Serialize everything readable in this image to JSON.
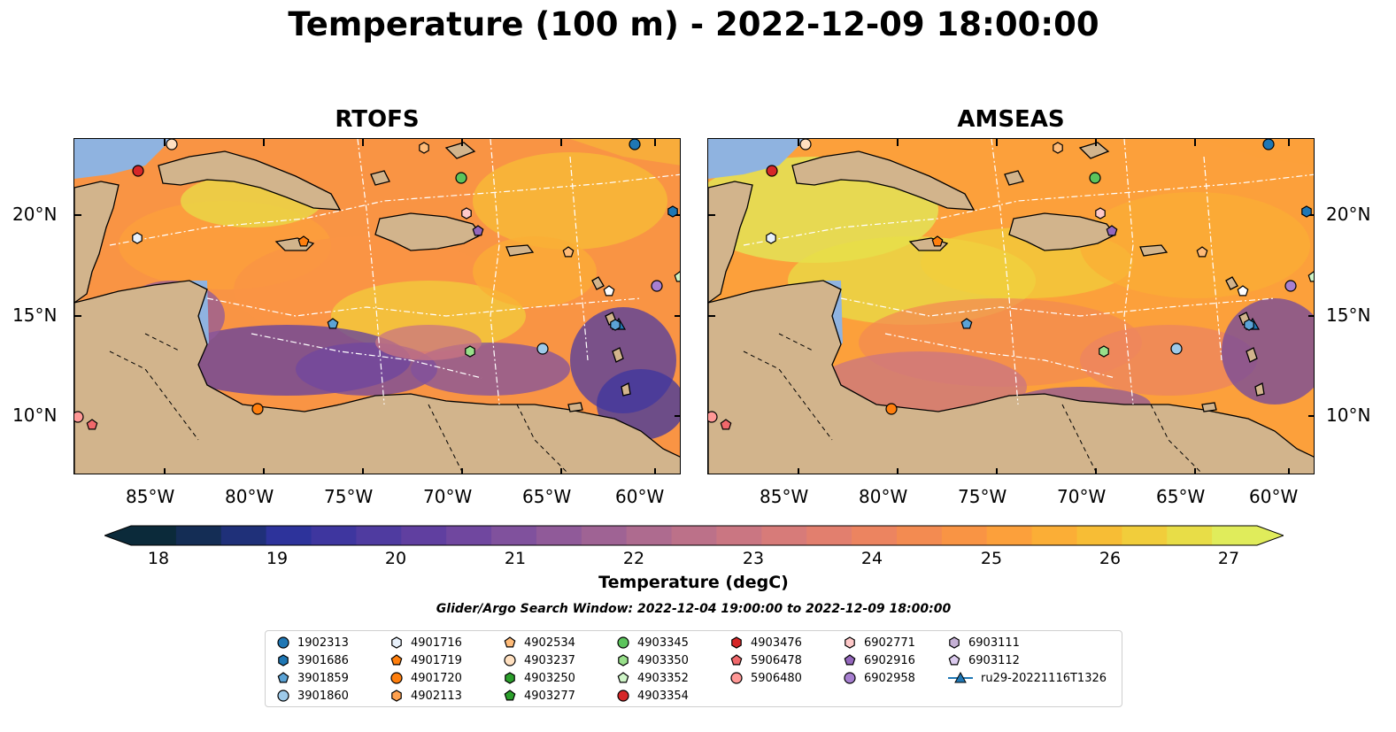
{
  "title": "Temperature (100 m) - 2022-12-09 18:00:00",
  "panels": [
    {
      "title": "RTOFS",
      "style": "rtofs"
    },
    {
      "title": "AMSEAS",
      "style": "amseas"
    }
  ],
  "map": {
    "lon_labels": [
      "85°W",
      "80°W",
      "75°W",
      "70°W",
      "65°W",
      "60°W"
    ],
    "lat_labels": [
      "20°N",
      "15°N",
      "10°N"
    ],
    "colors": {
      "land": "#d2b48c",
      "ocean": "#8fb3e0",
      "deep_ocean": "#06202f",
      "coast": "#000000",
      "eez_line": "#ffffff",
      "border_line": "#000000"
    }
  },
  "colorbar": {
    "label": "Temperature (degC)",
    "ticks": [
      "18",
      "19",
      "20",
      "21",
      "22",
      "23",
      "24",
      "25",
      "26",
      "27"
    ],
    "colors": [
      "#0b2a3a",
      "#142d55",
      "#1f3079",
      "#2d339b",
      "#3e369f",
      "#4f3ba0",
      "#603fa0",
      "#70479f",
      "#80519d",
      "#905a99",
      "#9f6394",
      "#ae6b8f",
      "#bc7189",
      "#ca7682",
      "#d77b79",
      "#e27f6e",
      "#ec8460",
      "#f38b51",
      "#f99444",
      "#fca03b",
      "#fbae36",
      "#f7bd35",
      "#f1cd3b",
      "#e8dd47",
      "#e0ec5b"
    ]
  },
  "search_window": "Glider/Argo Search Window: 2022-12-04 19:00:00 to 2022-12-09 18:00:00",
  "legend": {
    "columns": [
      [
        {
          "label": "1902313",
          "marker": "circle",
          "color": "#1f77b4"
        },
        {
          "label": "3901686",
          "marker": "hexagon",
          "color": "#1f77b4"
        },
        {
          "label": "3901859",
          "marker": "pentagon",
          "color": "#5ba3d6"
        },
        {
          "label": "3901860",
          "marker": "circle",
          "color": "#9ecae9"
        }
      ],
      [
        {
          "label": "4901716",
          "marker": "hexagon",
          "color": "#e8f1fb"
        },
        {
          "label": "4901719",
          "marker": "pentagon",
          "color": "#ff7f0e"
        },
        {
          "label": "4901720",
          "marker": "circle",
          "color": "#ff7f0e"
        },
        {
          "label": "4902113",
          "marker": "hexagon",
          "color": "#ffa14f"
        }
      ],
      [
        {
          "label": "4902534",
          "marker": "pentagon",
          "color": "#ffbb78"
        },
        {
          "label": "4903237",
          "marker": "circle",
          "color": "#ffe0c0"
        },
        {
          "label": "4903250",
          "marker": "hexagon",
          "color": "#2ca02c"
        },
        {
          "label": "4903277",
          "marker": "pentagon",
          "color": "#2ca02c"
        }
      ],
      [
        {
          "label": "4903345",
          "marker": "circle",
          "color": "#5cc45c"
        },
        {
          "label": "4903350",
          "marker": "hexagon",
          "color": "#98df8a"
        },
        {
          "label": "4903352",
          "marker": "pentagon",
          "color": "#cff5c8"
        },
        {
          "label": "4903354",
          "marker": "circle",
          "color": "#d62728"
        }
      ],
      [
        {
          "label": "4903476",
          "marker": "hexagon",
          "color": "#d62728"
        },
        {
          "label": "5906478",
          "marker": "pentagon",
          "color": "#f0686b"
        },
        {
          "label": "5906480",
          "marker": "circle",
          "color": "#ff9896"
        }
      ],
      [
        {
          "label": "6902771",
          "marker": "hexagon",
          "color": "#ffc9c9"
        },
        {
          "label": "6902916",
          "marker": "pentagon",
          "color": "#9467bd"
        },
        {
          "label": "6902958",
          "marker": "circle",
          "color": "#a77fd0"
        }
      ],
      [
        {
          "label": "6903111",
          "marker": "hexagon",
          "color": "#c5b0d5"
        },
        {
          "label": "6903112",
          "marker": "pentagon",
          "color": "#dccbef"
        },
        {
          "label": "ru29-20221116T1326",
          "marker": "track",
          "color": "#1f77b4"
        }
      ]
    ]
  }
}
